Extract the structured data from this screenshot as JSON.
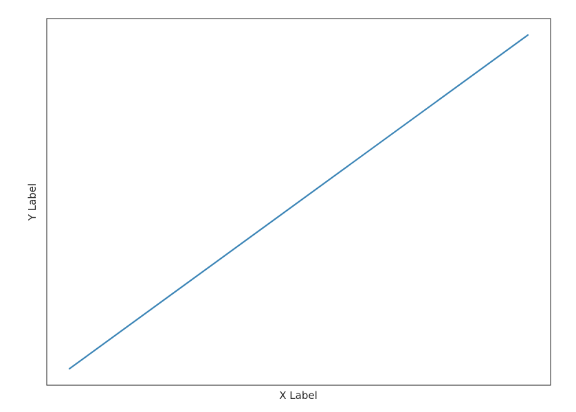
{
  "chart_data": {
    "type": "line",
    "title": "",
    "xlabel": "X Label",
    "ylabel": "Y Label",
    "x_ticks_visible": false,
    "y_ticks_visible": false,
    "grid": false,
    "xlim": [
      0,
      1
    ],
    "ylim": [
      0,
      1
    ],
    "series": [
      {
        "color": "#3a84b6",
        "points": [
          {
            "x": 0.045,
            "y": 0.045
          },
          {
            "x": 0.955,
            "y": 0.955
          }
        ]
      }
    ]
  }
}
